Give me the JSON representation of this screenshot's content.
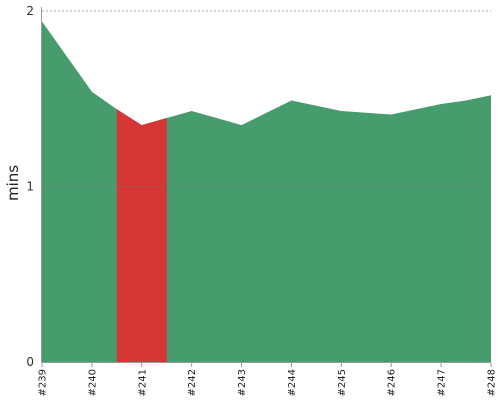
{
  "chart_data": {
    "type": "area",
    "ylabel": "mins",
    "xlabel": "",
    "title": "",
    "ylim": [
      0,
      2
    ],
    "yticks": [
      0,
      1,
      2
    ],
    "grid": "horizontal-dashed",
    "categories": [
      "#239",
      "#240",
      "#241",
      "#242",
      "#243",
      "#244",
      "#245",
      "#246",
      "#247",
      "#248"
    ],
    "x": [
      0,
      0.5,
      1,
      1.5,
      2,
      2.5,
      3,
      3.5,
      4,
      4.5,
      5,
      5.5,
      6,
      6.5,
      7,
      7.5,
      8,
      8.5,
      9
    ],
    "values": [
      1.94,
      1.74,
      1.54,
      1.44,
      1.35,
      1.39,
      1.43,
      1.39,
      1.35,
      1.42,
      1.49,
      1.46,
      1.43,
      1.42,
      1.41,
      1.44,
      1.47,
      1.49,
      1.52
    ],
    "highlight": {
      "from_x": 1.5,
      "to_x": 2.5
    },
    "colors": {
      "area": "#469c6c",
      "highlight": "#d63636",
      "grid": "#777777",
      "axis": "#999999"
    }
  }
}
